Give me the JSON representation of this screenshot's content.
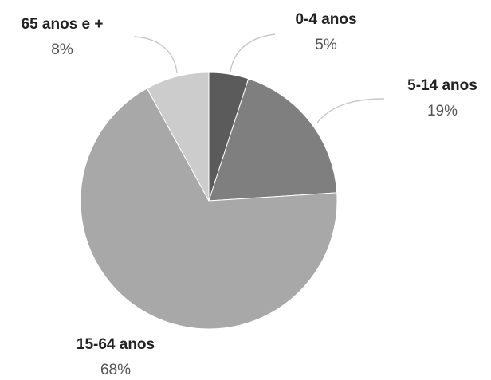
{
  "chart_data": {
    "type": "pie",
    "categories": [
      "0-4 anos",
      "5-14 anos",
      "15-64 anos",
      "65 anos e +"
    ],
    "values": [
      5,
      19,
      68,
      8
    ],
    "data_labels": [
      "5%",
      "19%",
      "68%",
      "8%"
    ],
    "colors": [
      "#5b5b5b",
      "#7f7f7f",
      "#a8a8a8",
      "#cccccc"
    ],
    "start_angle_deg": 0,
    "direction": "clockwise",
    "title": "",
    "legend": "none"
  }
}
